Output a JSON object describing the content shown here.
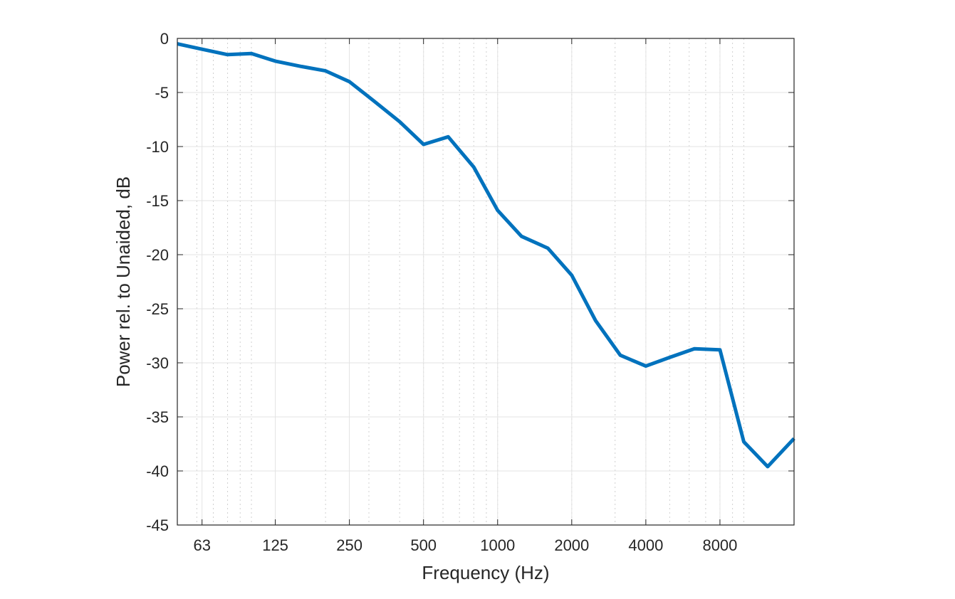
{
  "chart_data": {
    "type": "line",
    "title": "",
    "xlabel": "Frequency (Hz)",
    "ylabel": "Power rel. to Unaided, dB",
    "x_scale": "log",
    "xlim": [
      50,
      16000
    ],
    "ylim": [
      -45,
      0
    ],
    "xticks": [
      63,
      125,
      250,
      500,
      1000,
      2000,
      4000,
      8000
    ],
    "xtick_labels": [
      "63",
      "125",
      "250",
      "500",
      "1000",
      "2000",
      "4000",
      "8000"
    ],
    "yticks": [
      0,
      -5,
      -10,
      -15,
      -20,
      -25,
      -30,
      -35,
      -40,
      -45
    ],
    "ytick_labels": [
      "0",
      "-5",
      "-10",
      "-15",
      "-20",
      "-25",
      "-30",
      "-35",
      "-40",
      "-45"
    ],
    "grid": true,
    "minor_grid": true,
    "legend": "none",
    "series": [
      {
        "color": "#0072BD",
        "x": [
          50,
          63,
          80,
          100,
          125,
          160,
          200,
          250,
          315,
          400,
          500,
          630,
          800,
          1000,
          1250,
          1600,
          2000,
          2500,
          3150,
          4000,
          5000,
          6300,
          8000,
          10000,
          12500,
          16000
        ],
        "y": [
          -0.5,
          -1.0,
          -1.5,
          -1.4,
          -2.1,
          -2.6,
          -3.0,
          -4.0,
          -5.8,
          -7.7,
          -9.8,
          -9.1,
          -11.9,
          -15.9,
          -18.3,
          -19.4,
          -21.9,
          -26.1,
          -29.3,
          -30.3,
          -29.5,
          -28.7,
          -28.8,
          -37.3,
          -39.6,
          -37.0
        ]
      }
    ]
  }
}
